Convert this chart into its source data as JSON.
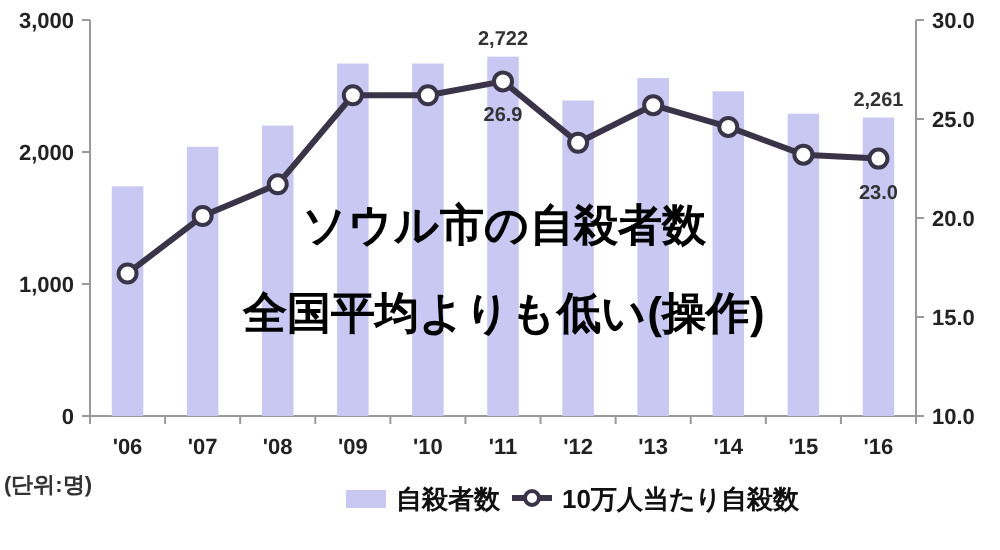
{
  "chart_data": {
    "type": "bar",
    "categories": [
      "'06",
      "'07",
      "'08",
      "'09",
      "'10",
      "'11",
      "'12",
      "'13",
      "'14",
      "'15",
      "'16"
    ],
    "series": [
      {
        "name": "自殺者数",
        "color": "#c8c8f2",
        "values": [
          1740,
          2040,
          2200,
          2670,
          2670,
          2722,
          2390,
          2560,
          2460,
          2290,
          2261
        ],
        "value_labels": [
          null,
          null,
          null,
          null,
          null,
          "2,722",
          null,
          null,
          null,
          null,
          "2,261"
        ]
      },
      {
        "name": "10万人当たり自殺数",
        "type": "line",
        "axis": "y2",
        "color": "#3a3448",
        "marker": "circle",
        "values": [
          17.2,
          20.1,
          21.7,
          26.2,
          26.2,
          26.9,
          23.8,
          25.7,
          24.6,
          23.2,
          23.0
        ],
        "value_labels": [
          null,
          null,
          null,
          null,
          null,
          "26.9",
          null,
          null,
          null,
          null,
          "23.0"
        ]
      }
    ],
    "ylim": [
      0,
      3000
    ],
    "yticks": [
      0,
      {
        "value": 1000,
        "label": "1,000"
      },
      {
        "value": 2000,
        "label": "2,000"
      },
      {
        "value": 3000,
        "label": "3,000"
      }
    ],
    "y2lim": [
      10,
      30
    ],
    "y2ticks": [
      {
        "value": 10,
        "label": "10.0"
      },
      {
        "value": 15,
        "label": "15.0"
      },
      {
        "value": 20,
        "label": "20.0"
      },
      {
        "value": 25,
        "label": "25.0"
      },
      {
        "value": 30,
        "label": "30.0"
      }
    ],
    "legend": "bottom",
    "annotations": [
      "ソウル市の自殺者数",
      "全国平均よりも低い(操作)",
      "(단위:명)"
    ]
  }
}
